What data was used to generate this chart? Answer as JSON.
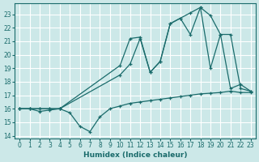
{
  "xlabel": "Humidex (Indice chaleur)",
  "bg_color": "#cce8e8",
  "line_color": "#1a6b6b",
  "grid_color": "#ffffff",
  "xlim": [
    -0.5,
    23.5
  ],
  "ylim": [
    13.8,
    23.8
  ],
  "xticks": [
    0,
    1,
    2,
    3,
    4,
    5,
    6,
    7,
    8,
    9,
    10,
    11,
    12,
    13,
    14,
    15,
    16,
    17,
    18,
    19,
    20,
    21,
    22,
    23
  ],
  "yticks": [
    14,
    15,
    16,
    17,
    18,
    19,
    20,
    21,
    22,
    23
  ],
  "line1_x": [
    0,
    1,
    2,
    3,
    4,
    5,
    6,
    7,
    8,
    9,
    10,
    11,
    12,
    13,
    14,
    15,
    16,
    17,
    18,
    19,
    20,
    21,
    22,
    23
  ],
  "line1_y": [
    16.0,
    16.0,
    15.8,
    15.9,
    16.0,
    15.7,
    14.7,
    14.3,
    15.4,
    16.0,
    16.2,
    16.4,
    16.5,
    16.6,
    16.7,
    16.8,
    16.9,
    17.0,
    17.1,
    17.15,
    17.2,
    17.3,
    17.2,
    17.2
  ],
  "line2_x": [
    0,
    1,
    2,
    3,
    4,
    10,
    11,
    12,
    13,
    14,
    15,
    16,
    17,
    18,
    19,
    20,
    21,
    22,
    23
  ],
  "line2_y": [
    16.0,
    16.0,
    16.0,
    16.0,
    16.0,
    18.5,
    19.3,
    21.2,
    18.7,
    19.5,
    22.3,
    22.7,
    21.5,
    23.5,
    22.9,
    21.5,
    21.5,
    17.5,
    17.3
  ],
  "line3_x": [
    0,
    1,
    2,
    3,
    4,
    10,
    11,
    12,
    13,
    14,
    15,
    16,
    17,
    18,
    19,
    20,
    21,
    22,
    23
  ],
  "line3_y": [
    16.0,
    16.0,
    16.0,
    16.0,
    16.0,
    19.2,
    21.2,
    21.3,
    18.7,
    19.5,
    22.3,
    22.7,
    23.1,
    23.5,
    19.0,
    21.5,
    17.5,
    17.8,
    17.3
  ]
}
